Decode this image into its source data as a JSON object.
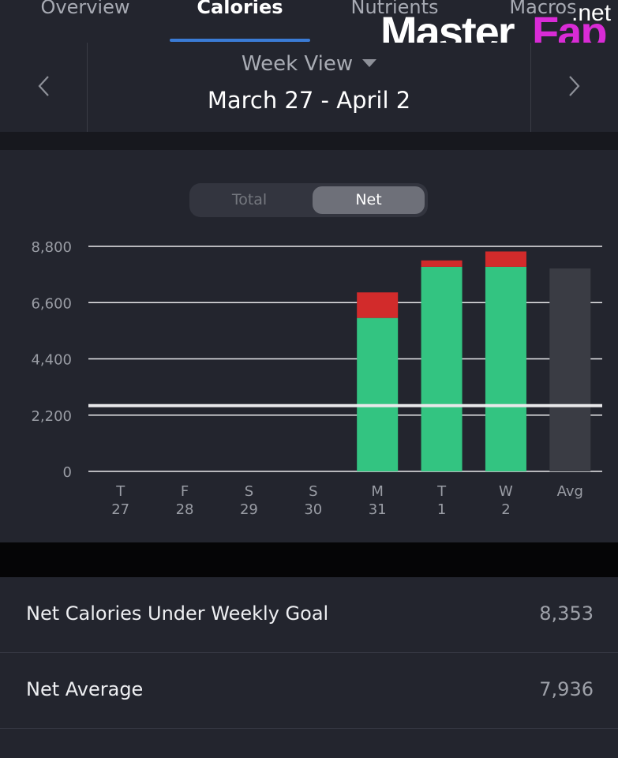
{
  "tabs": [
    {
      "label": "Overview",
      "active": false
    },
    {
      "label": "Calories",
      "active": true
    },
    {
      "label": "Nutrients",
      "active": false
    },
    {
      "label": "Macros",
      "active": false
    }
  ],
  "watermark": {
    "master": "Master",
    "fap": "Fap",
    "net": ".net"
  },
  "date_nav": {
    "view_label": "Week View",
    "range": "March 27 - April 2"
  },
  "toggle": {
    "total": "Total",
    "net": "Net",
    "selected": "Net"
  },
  "colors": {
    "under_goal": "#33c481",
    "over_goal": "#d22b2b",
    "average": "#3a3c44",
    "goal_line": "#e8e8ea"
  },
  "chart_data": {
    "type": "bar",
    "y_ticks": [
      "8,800",
      "6,600",
      "4,400",
      "2,200",
      "0"
    ],
    "ylim": [
      0,
      8800
    ],
    "goal": 2570,
    "categories": [
      {
        "day": "T",
        "date": "27"
      },
      {
        "day": "F",
        "date": "28"
      },
      {
        "day": "S",
        "date": "29"
      },
      {
        "day": "S",
        "date": "30"
      },
      {
        "day": "M",
        "date": "31"
      },
      {
        "day": "T",
        "date": "1"
      },
      {
        "day": "W",
        "date": "2"
      },
      {
        "day": "Avg",
        "date": ""
      }
    ],
    "series": [
      {
        "values": [
          0,
          0,
          0,
          0,
          6000,
          8000,
          8000,
          0
        ]
      },
      {
        "values": [
          0,
          0,
          0,
          0,
          1000,
          250,
          600,
          0
        ]
      },
      {
        "values": [
          0,
          0,
          0,
          0,
          0,
          0,
          0,
          7936
        ]
      }
    ]
  },
  "summary": [
    {
      "label": "Net Calories Under Weekly Goal",
      "value": "8,353"
    },
    {
      "label": "Net Average",
      "value": "7,936"
    }
  ]
}
